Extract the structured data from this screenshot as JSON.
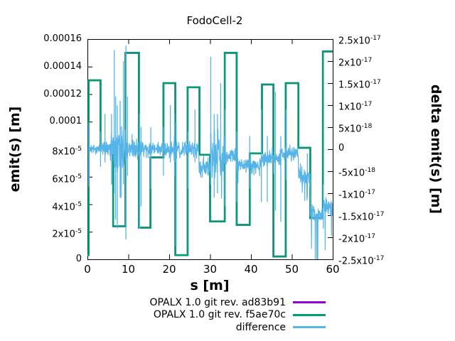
{
  "chart_data": {
    "type": "line",
    "title": "FodoCell-2",
    "xlabel": "s [m]",
    "ylabel_left": "emit(s) [m]",
    "ylabel_right": "delta emit(s) [m]",
    "x_range": [
      0,
      60
    ],
    "y_left_range": [
      0,
      0.00016
    ],
    "y_right_range": [
      -2.5e-17,
      2.5e-17
    ],
    "grid": false,
    "legend_position": "below-center-right",
    "x_ticks": [
      {
        "label": "0",
        "value": 0
      },
      {
        "label": "10",
        "value": 10
      },
      {
        "label": "20",
        "value": 20
      },
      {
        "label": "30",
        "value": 30
      },
      {
        "label": "40",
        "value": 40
      },
      {
        "label": "50",
        "value": 50
      },
      {
        "label": "60",
        "value": 60
      }
    ],
    "y_left_ticks": [
      {
        "label": "0",
        "value": 0
      },
      {
        "label": "2x10^-5",
        "value": 2e-05
      },
      {
        "label": "4x10^-5",
        "value": 4e-05
      },
      {
        "label": "6x10^-5",
        "value": 6e-05
      },
      {
        "label": "8x10^-5",
        "value": 8e-05
      },
      {
        "label": "0.0001",
        "value": 0.0001
      },
      {
        "label": "0.00012",
        "value": 0.00012
      },
      {
        "label": "0.00014",
        "value": 0.00014
      },
      {
        "label": "0.00016",
        "value": 0.00016
      }
    ],
    "y_right_ticks": [
      {
        "label": "-2.5x10^-17",
        "value": -2.5e-17
      },
      {
        "label": "-2x10^-17",
        "value": -2e-17
      },
      {
        "label": "-1.5x10^-17",
        "value": -1.5e-17
      },
      {
        "label": "-1x10^-17",
        "value": -1e-17
      },
      {
        "label": "-5x10^-18",
        "value": -5e-18
      },
      {
        "label": "0",
        "value": 0
      },
      {
        "label": "5x10^-18",
        "value": 5e-18
      },
      {
        "label": "1x10^-17",
        "value": 1e-17
      },
      {
        "label": "1.5x10^-17",
        "value": 1.5e-17
      },
      {
        "label": "2x10^-17",
        "value": 2e-17
      },
      {
        "label": "2.5x10^-17",
        "value": 2.5e-17
      }
    ],
    "emit_steps": [
      [
        0.0,
        3e-06
      ],
      [
        0.3,
        0.00013
      ],
      [
        3.2,
        8.1e-05
      ],
      [
        6.3,
        2.4e-05
      ],
      [
        9.3,
        0.00015
      ],
      [
        12.6,
        2.3e-05
      ],
      [
        15.4,
        7.4e-05
      ],
      [
        18.6,
        0.000128
      ],
      [
        21.5,
        3e-06
      ],
      [
        24.5,
        0.000125
      ],
      [
        27.4,
        7.6e-05
      ],
      [
        30.0,
        2.75e-05
      ],
      [
        33.6,
        0.00015
      ],
      [
        36.5,
        2.5e-05
      ],
      [
        39.7,
        7.7e-05
      ],
      [
        42.7,
        0.000127
      ],
      [
        45.5,
        2e-06
      ],
      [
        48.5,
        0.000128
      ],
      [
        51.6,
        8.1e-05
      ],
      [
        54.5,
        3e-05
      ],
      [
        57.6,
        0.000151
      ]
    ],
    "emit_steps_end_s": 60,
    "series": [
      {
        "name": "OPALX 1.0 git rev. ad83b91",
        "color": "#9400d3",
        "axis": "left",
        "style": "steps",
        "data_ref": "emit_steps"
      },
      {
        "name": "OPALX 1.0 git rev. f5ae70c",
        "color": "#009e73",
        "axis": "left",
        "style": "steps",
        "data_ref": "emit_steps",
        "note": "identical to ad83b91 within 1e-17, drawn on top of it"
      },
      {
        "name": "difference",
        "color": "#56b4e9",
        "axis": "right",
        "style": "noisy-line",
        "units": "1e-18",
        "seed": 7,
        "envelope": [
          [
            0.3,
            3.2,
            0,
            1.3
          ],
          [
            3.2,
            5.5,
            0,
            2.3
          ],
          [
            5.5,
            6.3,
            0,
            4.5
          ],
          [
            6.3,
            9.5,
            0,
            8
          ],
          [
            9.5,
            12.6,
            0,
            3
          ],
          [
            12.6,
            15.4,
            0,
            2.2
          ],
          [
            15.4,
            18.6,
            0,
            2
          ],
          [
            18.6,
            21.0,
            0,
            2.2
          ],
          [
            21.0,
            21.9,
            0,
            4.5
          ],
          [
            21.9,
            24.4,
            0,
            2.2
          ],
          [
            24.4,
            27.3,
            0,
            3
          ],
          [
            27.3,
            30.0,
            -4,
            2.8
          ],
          [
            30.0,
            33.5,
            -1,
            7
          ],
          [
            33.5,
            36.4,
            -1.5,
            2
          ],
          [
            36.4,
            39.6,
            -3.5,
            2.2
          ],
          [
            39.6,
            42.5,
            -3.8,
            2
          ],
          [
            42.5,
            45.2,
            -2,
            2.2
          ],
          [
            45.2,
            48.3,
            -1.5,
            2.5
          ],
          [
            48.3,
            51.6,
            -1,
            2.2
          ],
          [
            51.6,
            54.5,
            -6,
            3
          ],
          [
            54.5,
            57.5,
            -14.5,
            2.2
          ],
          [
            57.5,
            60,
            -13,
            2.5
          ]
        ],
        "spikes": [
          [
            0.35,
            -8.5,
            6
          ],
          [
            3.2,
            -4,
            4
          ],
          [
            4.3,
            -3,
            8
          ],
          [
            5.9,
            -8,
            8
          ],
          [
            6.55,
            -10,
            22.5
          ],
          [
            6.9,
            -16,
            12
          ],
          [
            7.3,
            -18,
            10
          ],
          [
            8.0,
            -11,
            11
          ],
          [
            8.8,
            -8,
            20
          ],
          [
            9.4,
            -20.5,
            23.5
          ],
          [
            9.8,
            -6,
            12
          ],
          [
            12.75,
            -18,
            8
          ],
          [
            13.1,
            -13,
            5
          ],
          [
            15.5,
            -9,
            5
          ],
          [
            18.6,
            -6,
            5
          ],
          [
            20.3,
            -3,
            10
          ],
          [
            21.3,
            -6,
            8
          ],
          [
            21.7,
            -22,
            6
          ],
          [
            24.6,
            -9,
            4
          ],
          [
            26.3,
            -3,
            9
          ],
          [
            30.15,
            -8,
            21
          ],
          [
            31.0,
            -11,
            8
          ],
          [
            31.8,
            -10,
            8
          ],
          [
            32.6,
            -6,
            15
          ],
          [
            33.65,
            -13,
            9
          ],
          [
            36.5,
            -12,
            4
          ],
          [
            39.7,
            -9,
            3
          ],
          [
            42.55,
            -12,
            9
          ],
          [
            44.0,
            -12,
            3
          ],
          [
            46.0,
            -14,
            13
          ],
          [
            47.3,
            -16.5,
            3
          ],
          [
            48.6,
            -7,
            9
          ],
          [
            53.8,
            -11,
            -1
          ],
          [
            57.7,
            -18,
            -8
          ]
        ]
      }
    ]
  }
}
